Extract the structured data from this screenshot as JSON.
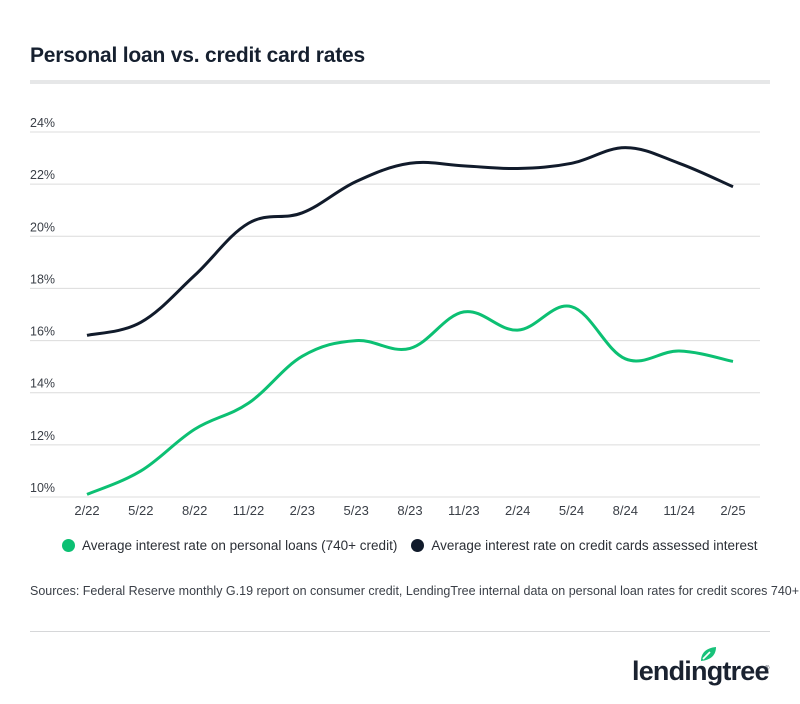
{
  "title": "Personal loan vs. credit card rates",
  "colors": {
    "personal_loans": "#0cc073",
    "credit_cards": "#111b2b",
    "grid": "#dcdcdc",
    "axis_text": "#3a3f47"
  },
  "legend": [
    {
      "label": "Average interest rate on personal loans (740+ credit)",
      "color": "#0cc073"
    },
    {
      "label": "Average interest rate on credit cards assessed interest",
      "color": "#111b2b"
    }
  ],
  "source": "Sources: Federal Reserve monthly G.19 report on consumer credit, LendingTree internal data on personal loan rates for credit scores 740+",
  "logo": {
    "text": "lendingtree",
    "registered": "®"
  },
  "chart_data": {
    "type": "line",
    "title": "Personal loan vs. credit card rates",
    "xlabel": "",
    "ylabel": "",
    "x": [
      "2/22",
      "5/22",
      "8/22",
      "11/22",
      "2/23",
      "5/23",
      "8/23",
      "11/23",
      "2/24",
      "5/24",
      "8/24",
      "11/24",
      "2/25"
    ],
    "y_ticks": [
      "10%",
      "12%",
      "14%",
      "16%",
      "18%",
      "20%",
      "22%",
      "24%"
    ],
    "ylim": [
      10,
      24
    ],
    "grid": true,
    "legend_position": "bottom",
    "series": [
      {
        "name": "Average interest rate on personal loans (740+ credit)",
        "color": "#0cc073",
        "values": [
          10.1,
          11.0,
          12.6,
          13.6,
          15.4,
          16.0,
          15.7,
          17.1,
          16.4,
          17.3,
          15.3,
          15.6,
          15.2
        ]
      },
      {
        "name": "Average interest rate on credit cards assessed interest",
        "color": "#111b2b",
        "values": [
          16.2,
          16.7,
          18.5,
          20.5,
          20.9,
          22.1,
          22.8,
          22.7,
          22.6,
          22.8,
          23.4,
          22.8,
          21.9
        ]
      }
    ]
  }
}
